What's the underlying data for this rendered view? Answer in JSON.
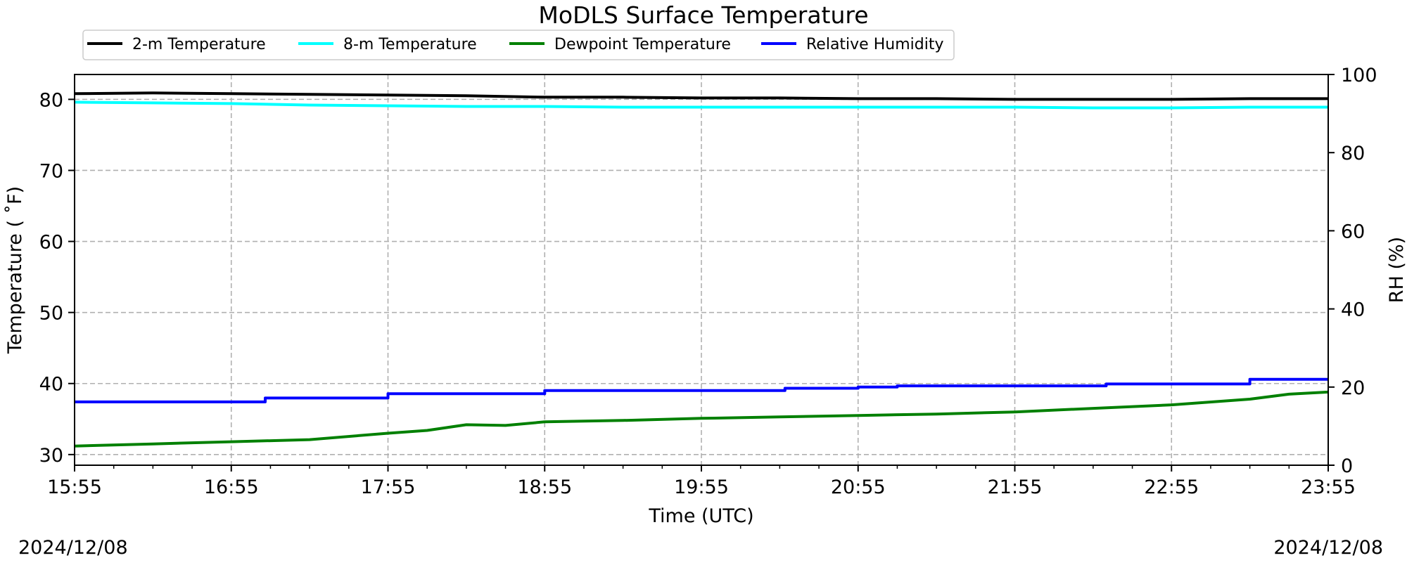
{
  "chart_data": {
    "type": "line",
    "title": "MoDLS Surface Temperature",
    "xlabel": "Time (UTC)",
    "ylabel_left": "Temperature ($^\\circ$F)",
    "ylabel_left_display": "Temperature ( ˚F)",
    "ylabel_right": "RH (%)",
    "start_date": "2024/12/08",
    "end_date": "2024/12/08",
    "x_ticks": [
      "15:55",
      "16:55",
      "17:55",
      "18:55",
      "19:55",
      "20:55",
      "21:55",
      "22:55",
      "23:55"
    ],
    "xlim": [
      "15:55",
      "23:55"
    ],
    "ylim_left": [
      28.5,
      83.5
    ],
    "yticks_left": [
      30,
      40,
      50,
      60,
      70,
      80
    ],
    "ylim_right": [
      0,
      100
    ],
    "yticks_right": [
      0,
      20,
      40,
      60,
      80,
      100
    ],
    "grid": true,
    "legend_position": "top-left, above plot",
    "series": [
      {
        "name": "2-m Temperature",
        "axis": "left",
        "color": "#000000",
        "x": [
          "15:55",
          "16:25",
          "16:55",
          "17:25",
          "17:55",
          "18:25",
          "18:55",
          "19:25",
          "19:55",
          "20:25",
          "20:55",
          "21:25",
          "21:55",
          "22:25",
          "22:55",
          "23:25",
          "23:55"
        ],
        "values": [
          80.8,
          80.9,
          80.8,
          80.7,
          80.6,
          80.5,
          80.3,
          80.3,
          80.2,
          80.2,
          80.1,
          80.1,
          80.0,
          80.0,
          80.0,
          80.1,
          80.1
        ]
      },
      {
        "name": "8-m Temperature",
        "axis": "left",
        "color": "#00ffff",
        "x": [
          "15:55",
          "16:25",
          "16:55",
          "17:25",
          "17:55",
          "18:25",
          "18:55",
          "19:25",
          "19:55",
          "20:25",
          "20:55",
          "21:25",
          "21:55",
          "22:25",
          "22:55",
          "23:25",
          "23:55"
        ],
        "values": [
          79.6,
          79.5,
          79.4,
          79.2,
          79.1,
          79.0,
          79.0,
          78.9,
          78.9,
          78.9,
          78.9,
          78.9,
          78.9,
          78.8,
          78.8,
          78.9,
          78.9
        ]
      },
      {
        "name": "Dewpoint Temperature",
        "axis": "left",
        "color": "#008000",
        "x": [
          "15:55",
          "16:25",
          "16:55",
          "17:25",
          "17:55",
          "18:10",
          "18:25",
          "18:40",
          "18:55",
          "19:25",
          "19:55",
          "20:25",
          "20:55",
          "21:25",
          "21:55",
          "22:25",
          "22:55",
          "23:25",
          "23:40",
          "23:55"
        ],
        "values": [
          31.2,
          31.5,
          31.8,
          32.1,
          33.0,
          33.4,
          34.2,
          34.1,
          34.6,
          34.8,
          35.1,
          35.3,
          35.5,
          35.7,
          36.0,
          36.5,
          37.0,
          37.8,
          38.5,
          38.8
        ]
      },
      {
        "name": "Relative Humidity",
        "axis": "right",
        "color": "#0000ff",
        "x": [
          "15:55",
          "17:08",
          "17:08",
          "17:55",
          "17:55",
          "18:55",
          "18:55",
          "20:27",
          "20:27",
          "20:55",
          "20:55",
          "21:10",
          "21:10",
          "22:30",
          "22:30",
          "23:25",
          "23:25",
          "23:55"
        ],
        "values": [
          16.2,
          16.2,
          17.2,
          17.2,
          18.3,
          18.3,
          19.1,
          19.1,
          19.7,
          19.7,
          20.0,
          20.0,
          20.3,
          20.3,
          20.8,
          20.8,
          22.0,
          22.0
        ]
      }
    ]
  }
}
